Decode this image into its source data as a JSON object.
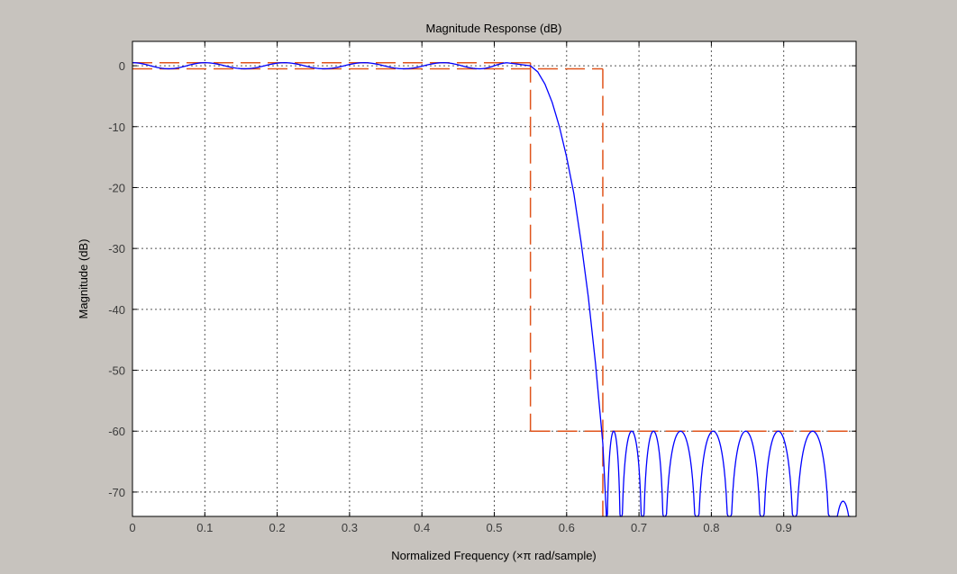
{
  "chart_data": {
    "type": "line",
    "title": "Magnitude Response (dB)",
    "xlabel": "Normalized Frequency (×π rad/sample)",
    "ylabel": "Magnitude (dB)",
    "xlim": [
      0,
      1
    ],
    "ylim": [
      -74,
      4
    ],
    "xticks": [
      0,
      0.1,
      0.2,
      0.3,
      0.4,
      0.5,
      0.6,
      0.7,
      0.8,
      0.9
    ],
    "xtick_labels": [
      "0",
      "0.1",
      "0.2",
      "0.3",
      "0.4",
      "0.5",
      "0.6",
      "0.7",
      "0.8",
      "0.9"
    ],
    "yticks": [
      0,
      -10,
      -20,
      -30,
      -40,
      -50,
      -60,
      -70
    ],
    "ytick_labels": [
      "0",
      "-10",
      "-20",
      "-30",
      "-40",
      "-50",
      "-60",
      "-70"
    ],
    "grid": true,
    "series": [
      {
        "role": "filter-response",
        "color": "#0000ff",
        "passband_edge": 0.55,
        "stopband_edge": 0.65,
        "passband_ripple_db": 0.5,
        "stopband_peak_db": -60,
        "passband_peaks": [
          0.0,
          0.1,
          0.21,
          0.32,
          0.43,
          0.52
        ],
        "passband_troughs": [
          0.05,
          0.155,
          0.265,
          0.375,
          0.48
        ],
        "rolloff": [
          [
            0.55,
            0
          ],
          [
            0.56,
            -1
          ],
          [
            0.57,
            -3
          ],
          [
            0.58,
            -6
          ],
          [
            0.59,
            -10
          ],
          [
            0.6,
            -15
          ],
          [
            0.61,
            -21
          ],
          [
            0.62,
            -29
          ],
          [
            0.63,
            -38
          ],
          [
            0.64,
            -49
          ],
          [
            0.65,
            -62
          ],
          [
            0.655,
            -74
          ]
        ],
        "stopband_nulls": [
          0.655,
          0.675,
          0.705,
          0.735,
          0.78,
          0.825,
          0.87,
          0.915,
          0.965
        ],
        "stopband_lobe_peaks": [
          0.662,
          0.69,
          0.72,
          0.758,
          0.802,
          0.847,
          0.892,
          0.94
        ],
        "last_lobe": {
          "peak_x": 0.982,
          "peak_y": -71.5
        }
      },
      {
        "role": "specification-mask",
        "color": "#e0541b",
        "dashed": true,
        "passband_upper_db": 0.5,
        "passband_lower_db": -0.5,
        "passband_edge": 0.55,
        "stopband_edge": 0.65,
        "stopband_attenuation_db": -60
      }
    ]
  },
  "colors": {
    "figure_background": "#c7c3be",
    "axes_background": "#ffffff",
    "grid": "#555555",
    "response": "#0000ff",
    "mask": "#e0541b"
  }
}
